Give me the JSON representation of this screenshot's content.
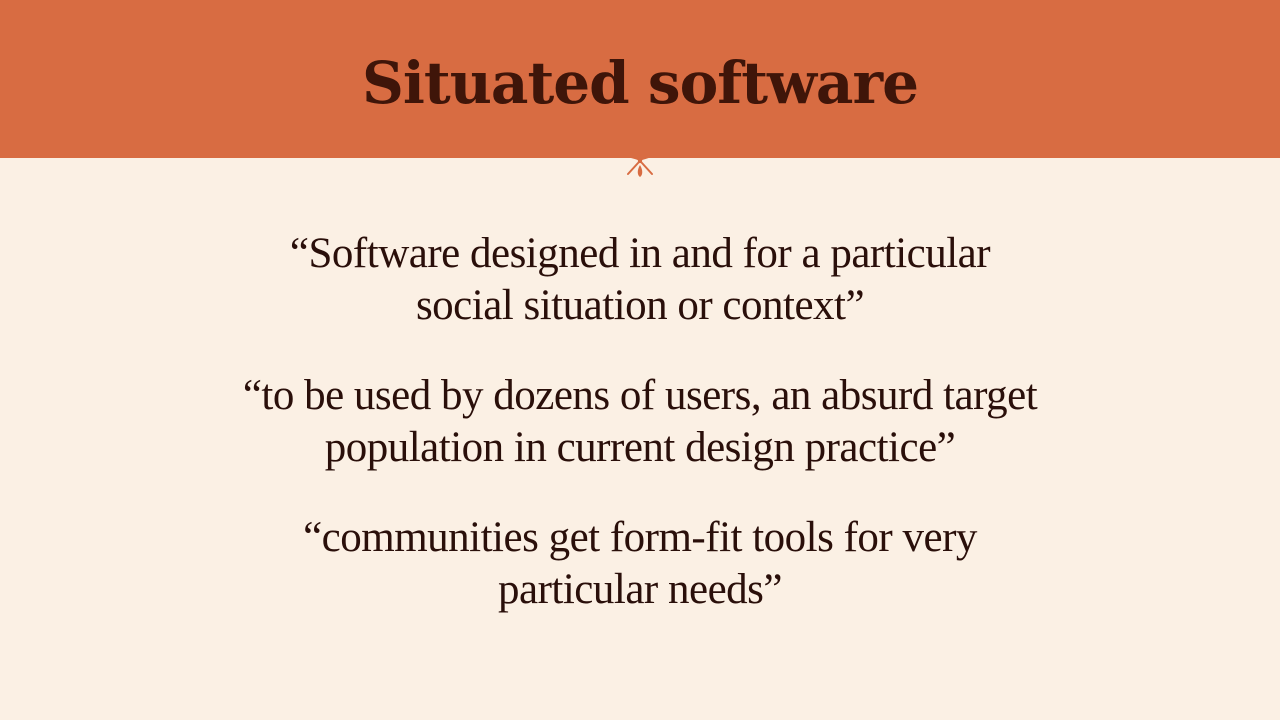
{
  "slide": {
    "title": "Situated software",
    "quotes": [
      "“Software designed in and for a particular social situation or context”",
      "“to be used by dozens of users, an absurd target population in current design practice”",
      "“communities get form-fit tools for very particular needs”"
    ]
  },
  "colors": {
    "header_background": "#d86c42",
    "slide_background": "#fbf0e4",
    "title_text": "#3f1509",
    "body_text": "#2a0f0a"
  },
  "icons": {
    "divider": "floral-ornament-icon"
  }
}
